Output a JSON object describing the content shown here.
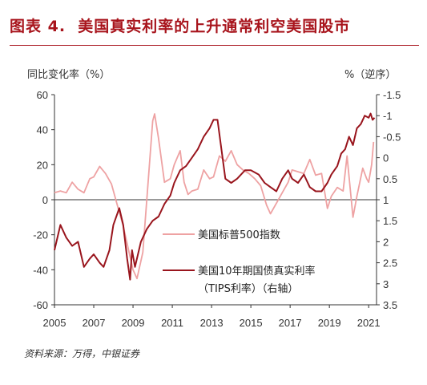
{
  "figure": {
    "label": "图表 4.",
    "title": "美国真实利率的上升通常利空美国股市",
    "left_unit": "同比变化率（%）",
    "right_unit": "%（逆序）",
    "source": "资料来源：万得，中银证券"
  },
  "chart_data": {
    "type": "line",
    "xlim": [
      2005,
      2021.4
    ],
    "x_ticks": [
      "2005",
      "2007",
      "2009",
      "2011",
      "2013",
      "2015",
      "2017",
      "2019",
      "2021"
    ],
    "y_left": {
      "range": [
        -60,
        60
      ],
      "ticks": [
        "60",
        "40",
        "20",
        "0",
        "-20",
        "-40",
        "-60"
      ]
    },
    "y_right": {
      "range": [
        -1.5,
        3.5
      ],
      "inverted": true,
      "ticks": [
        "-1.5",
        "-1",
        "-0.5",
        "0",
        "0.5",
        "1",
        "1.5",
        "2",
        "2.5",
        "3",
        "3.5"
      ]
    },
    "grid": false,
    "legend_position": "center",
    "series": [
      {
        "name": "美国标普500指数",
        "axis": "left",
        "color": "#eea2a3",
        "points": [
          [
            2005.0,
            4
          ],
          [
            2005.3,
            5
          ],
          [
            2005.6,
            4
          ],
          [
            2005.9,
            10
          ],
          [
            2006.2,
            6
          ],
          [
            2006.5,
            4
          ],
          [
            2006.8,
            12
          ],
          [
            2007.0,
            13
          ],
          [
            2007.3,
            19
          ],
          [
            2007.6,
            15
          ],
          [
            2007.9,
            9
          ],
          [
            2008.2,
            -3
          ],
          [
            2008.5,
            -15
          ],
          [
            2008.8,
            -30
          ],
          [
            2009.0,
            -40
          ],
          [
            2009.2,
            -45
          ],
          [
            2009.5,
            -30
          ],
          [
            2009.8,
            15
          ],
          [
            2010.0,
            45
          ],
          [
            2010.1,
            49
          ],
          [
            2010.3,
            35
          ],
          [
            2010.6,
            10
          ],
          [
            2010.9,
            12
          ],
          [
            2011.1,
            20
          ],
          [
            2011.4,
            28
          ],
          [
            2011.6,
            10
          ],
          [
            2011.8,
            3
          ],
          [
            2012.0,
            5
          ],
          [
            2012.3,
            6
          ],
          [
            2012.6,
            17
          ],
          [
            2012.9,
            12
          ],
          [
            2013.1,
            13
          ],
          [
            2013.4,
            25
          ],
          [
            2013.7,
            22
          ],
          [
            2014.0,
            28
          ],
          [
            2014.3,
            20
          ],
          [
            2014.6,
            17
          ],
          [
            2014.9,
            15
          ],
          [
            2015.2,
            12
          ],
          [
            2015.5,
            8
          ],
          [
            2015.8,
            -3
          ],
          [
            2016.0,
            -8
          ],
          [
            2016.3,
            -2
          ],
          [
            2016.6,
            4
          ],
          [
            2016.9,
            10
          ],
          [
            2017.1,
            17
          ],
          [
            2017.4,
            16
          ],
          [
            2017.7,
            15
          ],
          [
            2018.0,
            23
          ],
          [
            2018.3,
            14
          ],
          [
            2018.6,
            15
          ],
          [
            2018.9,
            -5
          ],
          [
            2019.1,
            2
          ],
          [
            2019.4,
            7
          ],
          [
            2019.7,
            5
          ],
          [
            2019.9,
            25
          ],
          [
            2020.2,
            -10
          ],
          [
            2020.4,
            2
          ],
          [
            2020.7,
            18
          ],
          [
            2020.9,
            12
          ],
          [
            2021.0,
            10
          ],
          [
            2021.15,
            20
          ],
          [
            2021.25,
            33
          ]
        ]
      },
      {
        "name": "美国10年期国债真实利率",
        "name_line2": "（TIPS利率）（右轴）",
        "axis": "right",
        "color": "#99151d",
        "points": [
          [
            2005.0,
            2.2
          ],
          [
            2005.3,
            1.6
          ],
          [
            2005.6,
            1.9
          ],
          [
            2005.9,
            2.1
          ],
          [
            2006.2,
            2.0
          ],
          [
            2006.5,
            2.6
          ],
          [
            2006.8,
            2.4
          ],
          [
            2007.0,
            2.3
          ],
          [
            2007.3,
            2.5
          ],
          [
            2007.5,
            2.6
          ],
          [
            2007.8,
            2.2
          ],
          [
            2008.0,
            1.6
          ],
          [
            2008.3,
            1.2
          ],
          [
            2008.5,
            1.6
          ],
          [
            2008.7,
            2.4
          ],
          [
            2008.85,
            2.9
          ],
          [
            2008.95,
            2.2
          ],
          [
            2009.1,
            2.6
          ],
          [
            2009.4,
            2.0
          ],
          [
            2009.7,
            1.7
          ],
          [
            2010.0,
            1.5
          ],
          [
            2010.3,
            1.4
          ],
          [
            2010.6,
            1.1
          ],
          [
            2010.9,
            0.9
          ],
          [
            2011.1,
            0.6
          ],
          [
            2011.4,
            0.3
          ],
          [
            2011.7,
            0.2
          ],
          [
            2012.0,
            0.0
          ],
          [
            2012.3,
            -0.2
          ],
          [
            2012.6,
            -0.5
          ],
          [
            2012.9,
            -0.7
          ],
          [
            2013.1,
            -0.9
          ],
          [
            2013.3,
            -0.9
          ],
          [
            2013.5,
            -0.2
          ],
          [
            2013.7,
            0.5
          ],
          [
            2014.0,
            0.6
          ],
          [
            2014.3,
            0.5
          ],
          [
            2014.7,
            0.3
          ],
          [
            2015.0,
            0.3
          ],
          [
            2015.4,
            0.4
          ],
          [
            2015.7,
            0.6
          ],
          [
            2016.0,
            0.7
          ],
          [
            2016.3,
            0.8
          ],
          [
            2016.6,
            0.5
          ],
          [
            2016.9,
            0.3
          ],
          [
            2017.1,
            0.5
          ],
          [
            2017.4,
            0.6
          ],
          [
            2017.7,
            0.4
          ],
          [
            2018.0,
            0.7
          ],
          [
            2018.3,
            0.8
          ],
          [
            2018.6,
            0.8
          ],
          [
            2018.9,
            0.6
          ],
          [
            2019.1,
            0.4
          ],
          [
            2019.4,
            0.2
          ],
          [
            2019.6,
            -0.1
          ],
          [
            2019.8,
            -0.2
          ],
          [
            2020.0,
            -0.5
          ],
          [
            2020.2,
            -0.3
          ],
          [
            2020.4,
            -0.7
          ],
          [
            2020.6,
            -0.8
          ],
          [
            2020.8,
            -1.0
          ],
          [
            2021.0,
            -0.95
          ],
          [
            2021.1,
            -1.05
          ],
          [
            2021.2,
            -0.9
          ],
          [
            2021.3,
            -0.95
          ]
        ]
      }
    ]
  }
}
